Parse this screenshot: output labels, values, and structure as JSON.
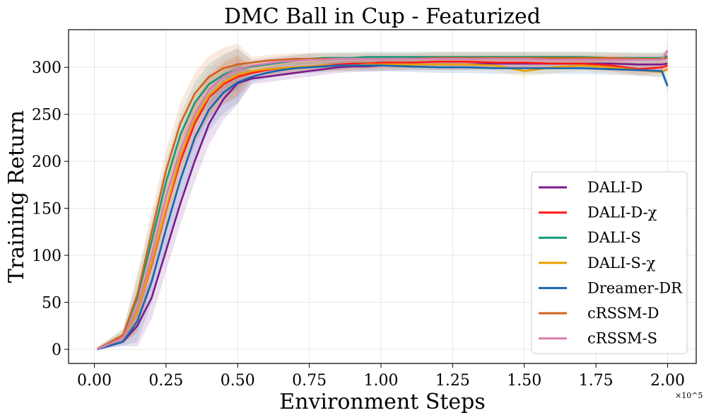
{
  "chart_data": {
    "type": "line",
    "title": "DMC Ball in Cup - Featurized",
    "xlabel": "Environment Steps",
    "ylabel": "Training Return",
    "x_scale_label": "×10^5",
    "xlim": [
      -0.09,
      2.1
    ],
    "ylim": [
      -15,
      340
    ],
    "xticks": [
      0.0,
      0.25,
      0.5,
      0.75,
      1.0,
      1.25,
      1.5,
      1.75,
      2.0
    ],
    "xtick_labels": [
      "0.00",
      "0.25",
      "0.50",
      "0.75",
      "1.00",
      "1.25",
      "1.50",
      "1.75",
      "2.00"
    ],
    "yticks": [
      0,
      50,
      100,
      150,
      200,
      250,
      300
    ],
    "ytick_labels": [
      "0",
      "50",
      "100",
      "150",
      "200",
      "250",
      "300"
    ],
    "grid": true,
    "legend_position": "center-right",
    "series": [
      {
        "name": "DALI-D",
        "color": "#7b1a8c",
        "shade": 0,
        "x": [
          0.01,
          0.1,
          0.15,
          0.2,
          0.25,
          0.3,
          0.35,
          0.4,
          0.45,
          0.5,
          0.55,
          0.6,
          0.65,
          0.7,
          0.75,
          0.8,
          0.85,
          0.9,
          0.95,
          1.0,
          1.1,
          1.2,
          1.3,
          1.4,
          1.5,
          1.6,
          1.7,
          1.8,
          1.9,
          1.98,
          2.0
        ],
        "y": [
          0,
          8,
          25,
          55,
          105,
          155,
          200,
          240,
          266,
          283,
          288,
          290,
          292,
          294,
          296,
          298,
          300,
          301,
          301,
          302,
          303,
          303,
          303,
          304,
          304,
          304,
          304,
          304,
          303,
          303,
          304
        ]
      },
      {
        "name": "DALI-D-χ",
        "color": "#ff1a1a",
        "shade": 0,
        "x": [
          0.01,
          0.1,
          0.15,
          0.2,
          0.25,
          0.3,
          0.35,
          0.4,
          0.45,
          0.5,
          0.55,
          0.6,
          0.65,
          0.7,
          0.75,
          0.8,
          0.85,
          0.9,
          0.95,
          1.0,
          1.1,
          1.2,
          1.3,
          1.4,
          1.5,
          1.6,
          1.7,
          1.8,
          1.9,
          1.98,
          2.0
        ],
        "y": [
          0,
          12,
          40,
          90,
          148,
          200,
          240,
          268,
          282,
          290,
          294,
          297,
          299,
          300,
          301,
          302,
          303,
          304,
          304,
          305,
          305,
          306,
          306,
          305,
          305,
          304,
          304,
          302,
          298,
          300,
          302
        ]
      },
      {
        "name": "DALI-S",
        "color": "#119a78",
        "shade": 0,
        "x": [
          0.01,
          0.1,
          0.15,
          0.2,
          0.25,
          0.3,
          0.35,
          0.4,
          0.45,
          0.5,
          0.55,
          0.6,
          0.65,
          0.7,
          0.75,
          0.8,
          0.85,
          0.9,
          0.95,
          1.0,
          1.1,
          1.2,
          1.3,
          1.4,
          1.5,
          1.6,
          1.7,
          1.8,
          1.9,
          1.98,
          2.0
        ],
        "y": [
          0,
          15,
          55,
          115,
          178,
          228,
          262,
          282,
          292,
          298,
          301,
          303,
          305,
          307,
          309,
          310,
          310,
          310,
          311,
          311,
          311,
          311,
          311,
          311,
          311,
          311,
          311,
          310,
          310,
          310,
          312
        ]
      },
      {
        "name": "DALI-S-χ",
        "color": "#e8a000",
        "shade": 0,
        "x": [
          0.01,
          0.1,
          0.15,
          0.2,
          0.25,
          0.3,
          0.35,
          0.4,
          0.45,
          0.5,
          0.55,
          0.6,
          0.65,
          0.7,
          0.75,
          0.8,
          0.85,
          0.9,
          0.95,
          1.0,
          1.1,
          1.2,
          1.3,
          1.4,
          1.5,
          1.6,
          1.7,
          1.8,
          1.9,
          1.98,
          2.0
        ],
        "y": [
          0,
          12,
          40,
          92,
          150,
          205,
          245,
          270,
          284,
          292,
          296,
          298,
          299,
          300,
          301,
          302,
          302,
          302,
          303,
          303,
          303,
          303,
          303,
          302,
          296,
          300,
          302,
          300,
          297,
          295,
          298
        ]
      },
      {
        "name": "Dreamer-DR",
        "color": "#1565b0",
        "shade": 0,
        "x": [
          0.01,
          0.1,
          0.15,
          0.2,
          0.25,
          0.3,
          0.35,
          0.4,
          0.45,
          0.5,
          0.55,
          0.6,
          0.65,
          0.7,
          0.75,
          0.8,
          0.85,
          0.9,
          0.95,
          1.0,
          1.1,
          1.2,
          1.3,
          1.4,
          1.5,
          1.6,
          1.7,
          1.8,
          1.9,
          1.98,
          2.0
        ],
        "y": [
          0,
          8,
          30,
          72,
          128,
          180,
          225,
          255,
          273,
          284,
          290,
          294,
          297,
          299,
          300,
          301,
          302,
          302,
          302,
          302,
          301,
          300,
          300,
          299,
          299,
          299,
          299,
          298,
          297,
          296,
          280
        ]
      },
      {
        "name": "cRSSM-D",
        "color": "#d2621a",
        "shade": 0,
        "x": [
          0.01,
          0.1,
          0.15,
          0.2,
          0.25,
          0.3,
          0.35,
          0.4,
          0.45,
          0.5,
          0.55,
          0.6,
          0.65,
          0.7,
          0.75,
          0.8,
          0.85,
          0.9,
          0.95,
          1.0,
          1.1,
          1.2,
          1.3,
          1.4,
          1.5,
          1.6,
          1.7,
          1.8,
          1.9,
          1.98,
          2.0
        ],
        "y": [
          0,
          15,
          58,
          125,
          190,
          240,
          272,
          290,
          299,
          303,
          305,
          307,
          308,
          309,
          309,
          309,
          309,
          309,
          309,
          309,
          309,
          310,
          310,
          310,
          310,
          310,
          310,
          310,
          309,
          309,
          310
        ]
      },
      {
        "name": "cRSSM-S",
        "color": "#d47fb2",
        "shade": 0,
        "x": [
          0.01,
          0.1,
          0.15,
          0.2,
          0.25,
          0.3,
          0.35,
          0.4,
          0.45,
          0.5,
          0.55,
          0.6,
          0.65,
          0.7,
          0.75,
          0.8,
          0.85,
          0.9,
          0.95,
          1.0,
          1.1,
          1.2,
          1.3,
          1.4,
          1.5,
          1.6,
          1.7,
          1.8,
          1.9,
          1.98,
          2.0
        ],
        "y": [
          0,
          12,
          45,
          100,
          162,
          212,
          250,
          276,
          290,
          298,
          302,
          304,
          306,
          307,
          308,
          308,
          309,
          309,
          309,
          309,
          309,
          309,
          309,
          309,
          309,
          308,
          308,
          308,
          308,
          308,
          318
        ]
      }
    ]
  }
}
